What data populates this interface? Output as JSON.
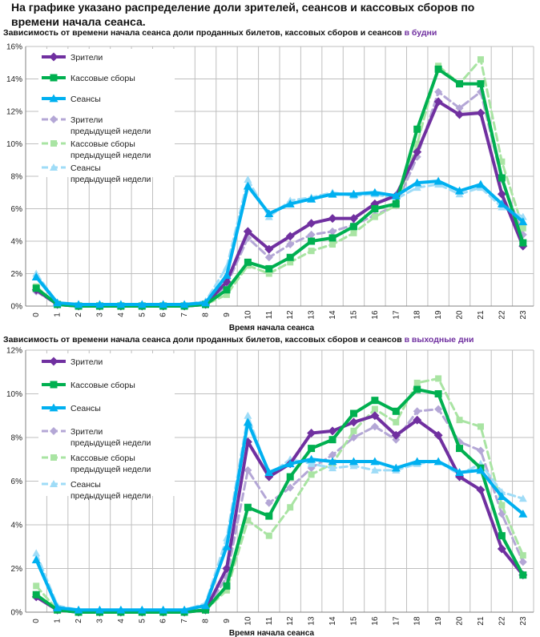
{
  "page": {
    "title": "На графике указано распределение доли зрителей, сеансов и кассовых сборов по времени начала сеанса."
  },
  "colors": {
    "viewers": "#7030a0",
    "box_office": "#00b050",
    "sessions": "#00b0f0",
    "viewers_prev": "#b4a7d6",
    "box_office_prev": "#a9e4a3",
    "sessions_prev": "#9fdcf7",
    "accent": "#7030a0"
  },
  "chart_data": [
    {
      "type": "line",
      "title": "Зависимость от времени начала сеанса доли проданных билетов, кассовых сборов и сеансов ",
      "title_accent": "в будни",
      "xlabel": "Время начала сеанса",
      "ylabel": "",
      "ylim": [
        0,
        16
      ],
      "yticks": [
        0,
        2,
        4,
        6,
        8,
        10,
        12,
        14,
        16
      ],
      "ytick_labels": [
        "0%",
        "2%",
        "4%",
        "6%",
        "8%",
        "10%",
        "12%",
        "14%",
        "16%"
      ],
      "categories": [
        "0",
        "1",
        "2",
        "3",
        "4",
        "5",
        "6",
        "7",
        "8",
        "9",
        "10",
        "11",
        "12",
        "13",
        "14",
        "15",
        "16",
        "17",
        "18",
        "19",
        "20",
        "21",
        "22",
        "23"
      ],
      "legend_position": "top-left",
      "series": [
        {
          "name": "Зрители",
          "key": "viewers",
          "marker": "diamond",
          "dashed": false,
          "values": [
            1.0,
            0.1,
            0,
            0,
            0,
            0,
            0,
            0,
            0.1,
            1.5,
            4.6,
            3.5,
            4.3,
            5.1,
            5.4,
            5.4,
            6.3,
            6.8,
            9.5,
            12.6,
            11.8,
            11.9,
            6.9,
            3.7
          ]
        },
        {
          "name": "Кассовые сборы",
          "key": "box_office",
          "marker": "square",
          "dashed": false,
          "values": [
            1.1,
            0.1,
            0,
            0,
            0,
            0,
            0,
            0,
            0.1,
            1.0,
            2.7,
            2.3,
            3.0,
            4.0,
            4.2,
            4.9,
            6.0,
            6.3,
            10.9,
            14.6,
            13.7,
            13.7,
            7.9,
            3.9
          ]
        },
        {
          "name": "Сеансы",
          "key": "sessions",
          "marker": "triangle",
          "dashed": false,
          "values": [
            1.8,
            0.2,
            0.1,
            0.1,
            0.1,
            0.1,
            0.1,
            0.1,
            0.2,
            1.9,
            7.4,
            5.7,
            6.3,
            6.6,
            6.9,
            6.9,
            7.0,
            6.8,
            7.6,
            7.7,
            7.1,
            7.5,
            6.3,
            5.2
          ]
        },
        {
          "name": "Зрители предыдущей недели",
          "key": "viewers_prev",
          "marker": "diamond",
          "dashed": true,
          "values": [
            0.9,
            0.1,
            0,
            0,
            0,
            0,
            0,
            0,
            0.1,
            1.3,
            4.2,
            3.0,
            3.8,
            4.4,
            4.6,
            5.0,
            5.6,
            6.2,
            9.2,
            13.2,
            12.2,
            13.2,
            7.8,
            4.4
          ]
        },
        {
          "name": "Кассовые сборы предыдущей недели",
          "key": "box_office_prev",
          "marker": "square",
          "dashed": true,
          "values": [
            1.2,
            0.1,
            0,
            0,
            0,
            0,
            0,
            0,
            0.1,
            0.7,
            2.5,
            2.0,
            2.7,
            3.4,
            3.8,
            4.5,
            5.5,
            6.2,
            10.0,
            14.8,
            13.7,
            15.2,
            8.9,
            4.8
          ]
        },
        {
          "name": "Сеансы предыдущей недели",
          "key": "sessions_prev",
          "marker": "triangle",
          "dashed": true,
          "values": [
            2.0,
            0.2,
            0.1,
            0.1,
            0.1,
            0.1,
            0.1,
            0.1,
            0.3,
            2.4,
            7.8,
            5.5,
            6.5,
            6.7,
            7.0,
            6.8,
            6.9,
            6.6,
            7.3,
            7.5,
            6.9,
            7.3,
            6.1,
            5.5
          ]
        }
      ]
    },
    {
      "type": "line",
      "title": "Зависимость от времени начала сеанса доли проданных билетов, кассовых сборов и сеансов ",
      "title_accent": "в выходные дни",
      "xlabel": "Время начала сеанса",
      "ylabel": "",
      "ylim": [
        0,
        12
      ],
      "yticks": [
        0,
        2,
        4,
        6,
        8,
        10,
        12
      ],
      "ytick_labels": [
        "0%",
        "2%",
        "4%",
        "6%",
        "8%",
        "10%",
        "12%"
      ],
      "categories": [
        "0",
        "1",
        "2",
        "3",
        "4",
        "5",
        "6",
        "7",
        "8",
        "9",
        "10",
        "11",
        "12",
        "13",
        "14",
        "15",
        "16",
        "17",
        "18",
        "19",
        "20",
        "21",
        "22",
        "23"
      ],
      "legend_position": "top-left",
      "series": [
        {
          "name": "Зрители",
          "key": "viewers",
          "marker": "diamond",
          "dashed": false,
          "values": [
            0.7,
            0.1,
            0,
            0,
            0,
            0,
            0,
            0,
            0.1,
            2.0,
            7.8,
            6.2,
            6.8,
            8.2,
            8.3,
            8.7,
            9.0,
            8.1,
            8.8,
            8.1,
            6.2,
            5.6,
            2.9,
            1.7
          ]
        },
        {
          "name": "Кассовые сборы",
          "key": "box_office",
          "marker": "square",
          "dashed": false,
          "values": [
            0.8,
            0.1,
            0,
            0,
            0,
            0,
            0,
            0,
            0.1,
            1.2,
            4.8,
            4.4,
            6.2,
            7.5,
            7.9,
            9.1,
            9.7,
            9.2,
            10.2,
            10.0,
            7.5,
            6.6,
            3.5,
            1.7
          ]
        },
        {
          "name": "Сеансы",
          "key": "sessions",
          "marker": "triangle",
          "dashed": false,
          "values": [
            2.4,
            0.2,
            0.1,
            0.1,
            0.1,
            0.1,
            0.1,
            0.1,
            0.3,
            3.0,
            8.7,
            6.4,
            6.8,
            7.0,
            6.9,
            6.9,
            6.9,
            6.6,
            6.9,
            6.9,
            6.4,
            6.5,
            5.3,
            4.5
          ]
        },
        {
          "name": "Зрители предыдущей недели",
          "key": "viewers_prev",
          "marker": "diamond",
          "dashed": true,
          "values": [
            0.8,
            0.1,
            0,
            0,
            0,
            0,
            0,
            0,
            0.1,
            1.6,
            6.5,
            5.0,
            5.7,
            6.6,
            7.2,
            8.0,
            8.5,
            7.9,
            9.2,
            9.3,
            7.8,
            7.4,
            4.5,
            2.3
          ]
        },
        {
          "name": "Кассовые сборы предыдущей недели",
          "key": "box_office_prev",
          "marker": "square",
          "dashed": true,
          "values": [
            1.2,
            0.1,
            0,
            0,
            0,
            0,
            0,
            0,
            0.1,
            1.0,
            4.2,
            3.5,
            4.8,
            6.3,
            6.8,
            8.3,
            9.3,
            8.7,
            10.5,
            10.7,
            8.8,
            8.5,
            4.9,
            2.6
          ]
        },
        {
          "name": "Сеансы предыдущей недели",
          "key": "sessions_prev",
          "marker": "triangle",
          "dashed": true,
          "values": [
            2.7,
            0.3,
            0.1,
            0.1,
            0.1,
            0.1,
            0.1,
            0.1,
            0.4,
            3.4,
            9.0,
            6.3,
            7.0,
            6.8,
            6.6,
            6.7,
            6.5,
            6.5,
            6.8,
            6.9,
            6.3,
            6.8,
            5.5,
            5.2
          ]
        }
      ]
    }
  ]
}
